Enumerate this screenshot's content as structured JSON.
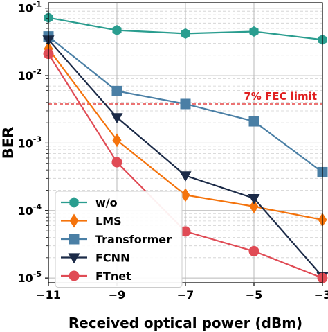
{
  "chart_data": {
    "type": "line",
    "xlabel": "Received optical power (dBm)",
    "ylabel": "BER",
    "xlim": [
      -11,
      -3
    ],
    "ylim": [
      8.5e-06,
      0.12
    ],
    "yscale": "log",
    "grid": true,
    "x_ticks": [
      -11,
      -9,
      -7,
      -5,
      -3
    ],
    "x_tick_labels": [
      "−11",
      "−9",
      "−7",
      "−5",
      "−3"
    ],
    "y_ticks": [
      {
        "value": 0.1,
        "base": "10",
        "exp": "-1"
      },
      {
        "value": 0.01,
        "base": "10",
        "exp": "-2"
      },
      {
        "value": 0.001,
        "base": "10",
        "exp": "-3"
      },
      {
        "value": 0.0001,
        "base": "10",
        "exp": "-4"
      },
      {
        "value": 1e-05,
        "base": "10",
        "exp": "-5"
      }
    ],
    "legend_position": "lower-left",
    "x": [
      -11,
      -9,
      -7,
      -5,
      -3
    ],
    "series": [
      {
        "name": "w/o",
        "color": "#2a9d8f",
        "marker": "hexagon",
        "values": [
          0.072,
          0.047,
          0.042,
          0.045,
          0.034
        ]
      },
      {
        "name": "LMS",
        "color": "#f4730c",
        "marker": "diamond",
        "values": [
          0.025,
          0.0011,
          0.00017,
          0.000115,
          7.3e-05
        ]
      },
      {
        "name": "Transformer",
        "color": "#4a7fa5",
        "marker": "square",
        "values": [
          0.038,
          0.0059,
          0.0038,
          0.0021,
          0.00037
        ]
      },
      {
        "name": "FCNN",
        "color": "#1b2a47",
        "marker": "triangle-down",
        "values": [
          0.034,
          0.0024,
          0.00033,
          0.000152,
          1.05e-05
        ]
      },
      {
        "name": "FTnet",
        "color": "#e04b55",
        "marker": "circle",
        "values": [
          0.021,
          0.00052,
          4.9e-05,
          2.5e-05,
          1e-05
        ]
      }
    ],
    "annotations": [
      {
        "text": "7% FEC limit",
        "y": 0.0038,
        "color": "#e02020",
        "style": "dashed"
      }
    ]
  }
}
